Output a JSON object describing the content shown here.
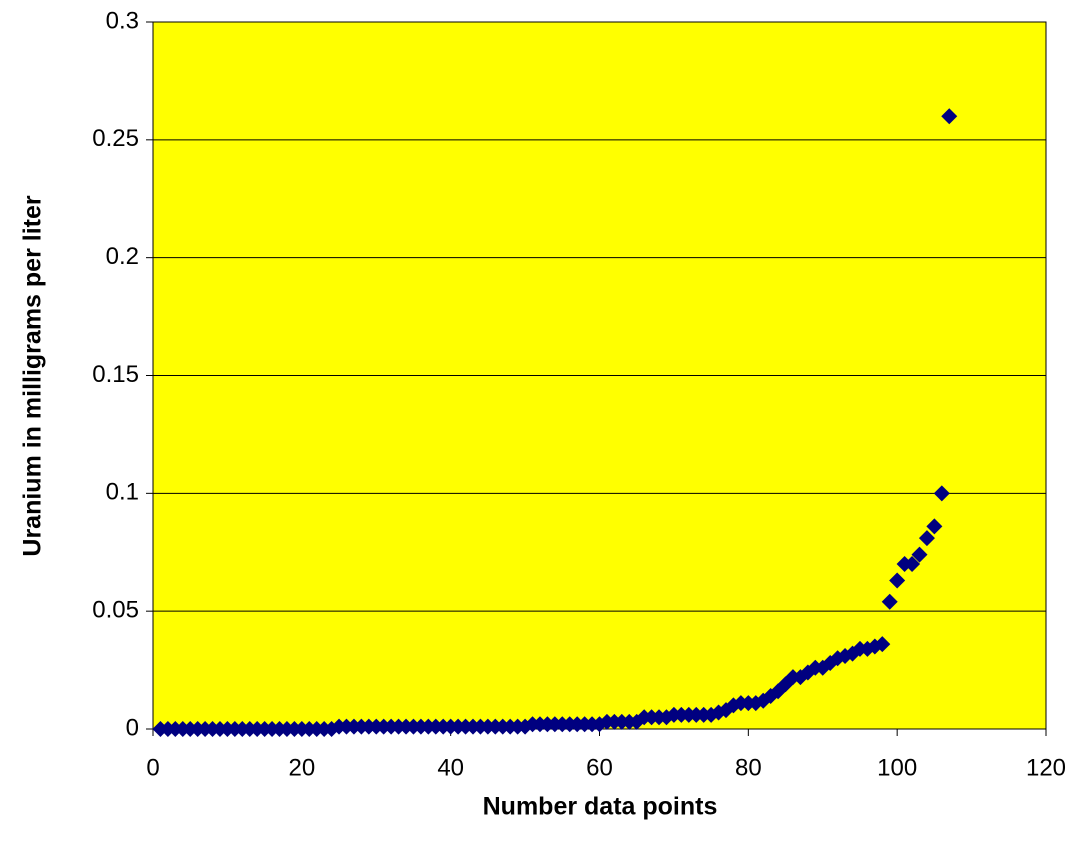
{
  "chart_data": {
    "type": "scatter",
    "xlabel": "Number data points",
    "ylabel": "Uranium in milligrams per liter",
    "xlim": [
      0,
      120
    ],
    "xticks": [
      0,
      20,
      40,
      60,
      80,
      100,
      120
    ],
    "ylim": [
      0,
      0.3
    ],
    "yticks": [
      0,
      0.05,
      0.1,
      0.15,
      0.2,
      0.25,
      0.3
    ],
    "grid": true,
    "background": "#ffff00",
    "series": [
      {
        "color": "#000080",
        "x": [
          1,
          2,
          3,
          4,
          5,
          6,
          7,
          8,
          9,
          10,
          11,
          12,
          13,
          14,
          15,
          16,
          17,
          18,
          19,
          20,
          21,
          22,
          23,
          24,
          25,
          26,
          27,
          28,
          29,
          30,
          31,
          32,
          33,
          34,
          35,
          36,
          37,
          38,
          39,
          40,
          41,
          42,
          43,
          44,
          45,
          46,
          47,
          48,
          49,
          50,
          51,
          52,
          53,
          54,
          55,
          56,
          57,
          58,
          59,
          60,
          61,
          62,
          63,
          64,
          65,
          66,
          67,
          68,
          69,
          70,
          71,
          72,
          73,
          74,
          75,
          76,
          77,
          78,
          79,
          80,
          81,
          82,
          83,
          84,
          85,
          86,
          87,
          88,
          89,
          90,
          91,
          92,
          93,
          94,
          95,
          96,
          97,
          98,
          99,
          100,
          101,
          102,
          103,
          104,
          105,
          106,
          107
        ],
        "values": [
          0,
          0,
          0,
          0,
          0,
          0,
          0,
          0,
          0,
          0,
          0,
          0,
          0,
          0,
          0,
          0,
          0,
          0,
          0,
          0,
          0,
          0,
          0,
          0,
          0.001,
          0.001,
          0.001,
          0.001,
          0.001,
          0.001,
          0.001,
          0.001,
          0.001,
          0.001,
          0.001,
          0.001,
          0.001,
          0.001,
          0.001,
          0.001,
          0.001,
          0.001,
          0.001,
          0.001,
          0.001,
          0.001,
          0.001,
          0.001,
          0.001,
          0.001,
          0.002,
          0.002,
          0.002,
          0.002,
          0.002,
          0.002,
          0.002,
          0.002,
          0.002,
          0.002,
          0.003,
          0.003,
          0.003,
          0.003,
          0.003,
          0.005,
          0.005,
          0.005,
          0.005,
          0.006,
          0.006,
          0.006,
          0.006,
          0.006,
          0.006,
          0.007,
          0.008,
          0.01,
          0.011,
          0.011,
          0.011,
          0.012,
          0.014,
          0.016,
          0.019,
          0.022,
          0.022,
          0.024,
          0.026,
          0.026,
          0.028,
          0.03,
          0.031,
          0.032,
          0.034,
          0.034,
          0.035,
          0.036,
          0.054,
          0.063,
          0.07,
          0.07,
          0.074,
          0.081,
          0.086,
          0.1,
          0.26
        ]
      }
    ]
  }
}
